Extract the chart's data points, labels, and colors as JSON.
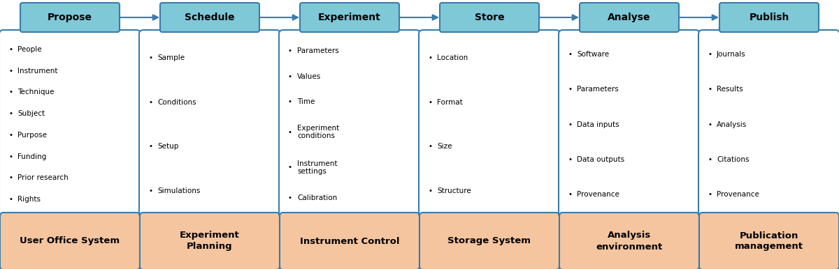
{
  "top_boxes": [
    "Propose",
    "Schedule",
    "Experiment",
    "Store",
    "Analyse",
    "Publish"
  ],
  "top_box_color": "#7ec8d8",
  "top_box_edge_color": "#3a7ca8",
  "arrow_color": "#3a7ca8",
  "middle_items": [
    [
      "People",
      "Instrument",
      "Technique",
      "Subject",
      "Purpose",
      "Funding",
      "Prior research",
      "Rights"
    ],
    [
      "Sample",
      "Conditions",
      "Setup",
      "Simulations"
    ],
    [
      "Parameters",
      "Values",
      "Time",
      "Experiment\nconditions",
      "Instrument\nsettings",
      "Calibration"
    ],
    [
      "Location",
      "Format",
      "Size",
      "Structure"
    ],
    [
      "Software",
      "Parameters",
      "Data inputs",
      "Data outputs",
      "Provenance"
    ],
    [
      "Journals",
      "Results",
      "Analysis",
      "Citations",
      "Provenance"
    ]
  ],
  "middle_box_face_color": "#ffffff",
  "middle_box_edge_color": "#3a7ca8",
  "bottom_labels": [
    "User Office System",
    "Experiment\nPlanning",
    "Instrument Control",
    "Storage System",
    "Analysis\nenvironment",
    "Publication\nmanagement"
  ],
  "bottom_box_color": "#f5c5a0",
  "bottom_box_edge_color": "#3a7ca8",
  "n_cols": 6,
  "fig_bg": "#ffffff",
  "fig_width": 12.0,
  "fig_height": 3.86
}
